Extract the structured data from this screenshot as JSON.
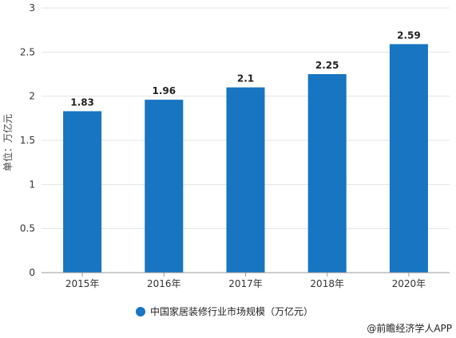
{
  "chart_data": {
    "type": "bar",
    "categories": [
      "2015年",
      "2016年",
      "2017年",
      "2018年",
      "2020年"
    ],
    "series": [
      {
        "name": "中国家居装修行业市场规模（万亿元）",
        "values": [
          1.83,
          1.96,
          2.1,
          2.25,
          2.59
        ]
      }
    ],
    "data_labels": [
      "1.83",
      "1.96",
      "2.1",
      "2.25",
      "2.59"
    ],
    "ylabel": "单位：万亿元",
    "ylim": [
      0,
      3
    ],
    "yticks": [
      "0",
      "0.5",
      "1",
      "1.5",
      "2",
      "2.5",
      "3"
    ],
    "grid": true,
    "legend_position": "bottom-center",
    "colors": {
      "bar": "#1775c2",
      "grid": "#e3e3e3",
      "axis": "#999999"
    }
  },
  "credit": "@前瞻经济学人APP"
}
